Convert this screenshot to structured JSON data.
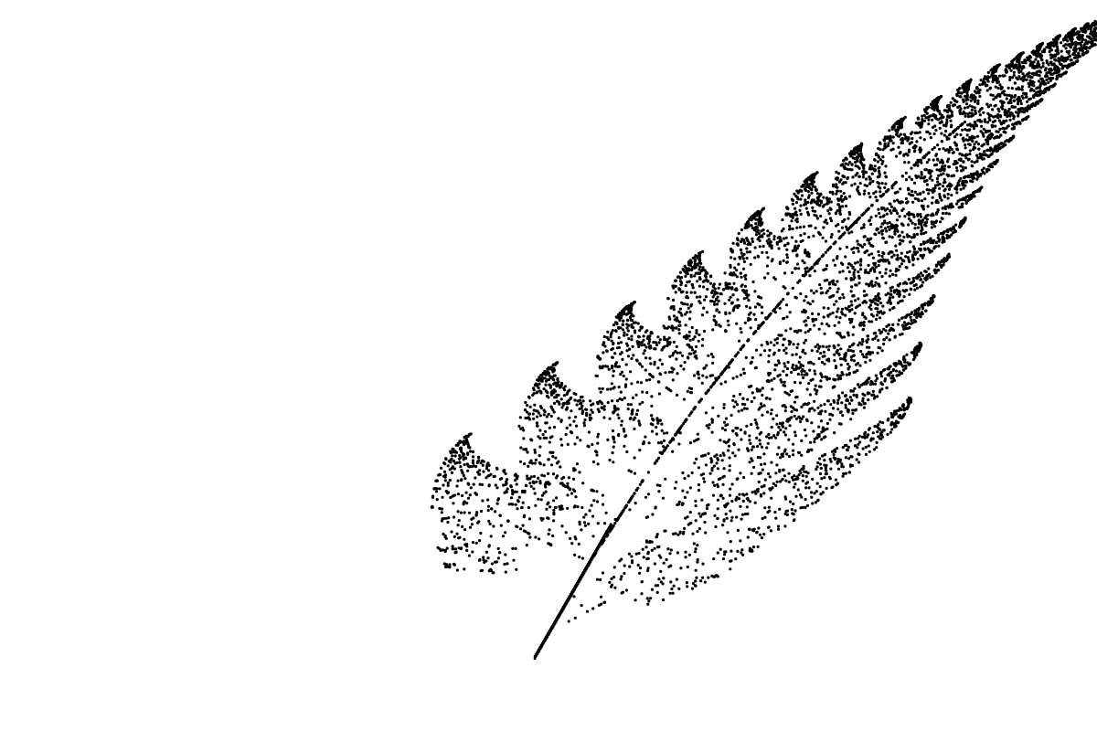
{
  "figure": {
    "subject": "barnsley-fern",
    "point_color": "#000000",
    "background": "#ffffff"
  }
}
